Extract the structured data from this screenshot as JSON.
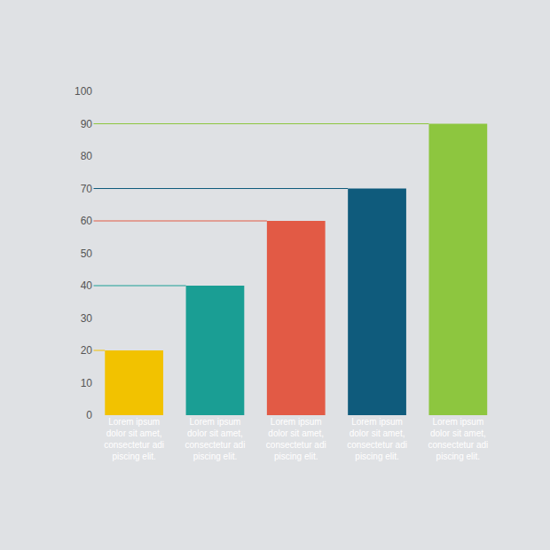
{
  "chart_data": {
    "type": "bar",
    "categories": [
      "Lorem ipsum dolor sit amet, consectetur adi piscing elit.",
      "Lorem ipsum dolor sit amet, consectetur adi piscing elit.",
      "Lorem ipsum dolor sit amet, consectetur adi piscing elit.",
      "Lorem ipsum dolor sit amet, consectetur adi piscing elit.",
      "Lorem ipsum dolor sit amet, consectetur adi piscing elit."
    ],
    "values": [
      20,
      40,
      60,
      70,
      90
    ],
    "colors": [
      "#f2c200",
      "#1a9e94",
      "#e25a45",
      "#0f5b7c",
      "#8dc63f"
    ],
    "ylim": [
      0,
      100
    ],
    "yticks": [
      0,
      10,
      20,
      30,
      40,
      50,
      60,
      70,
      80,
      90,
      100
    ],
    "grid": false
  }
}
